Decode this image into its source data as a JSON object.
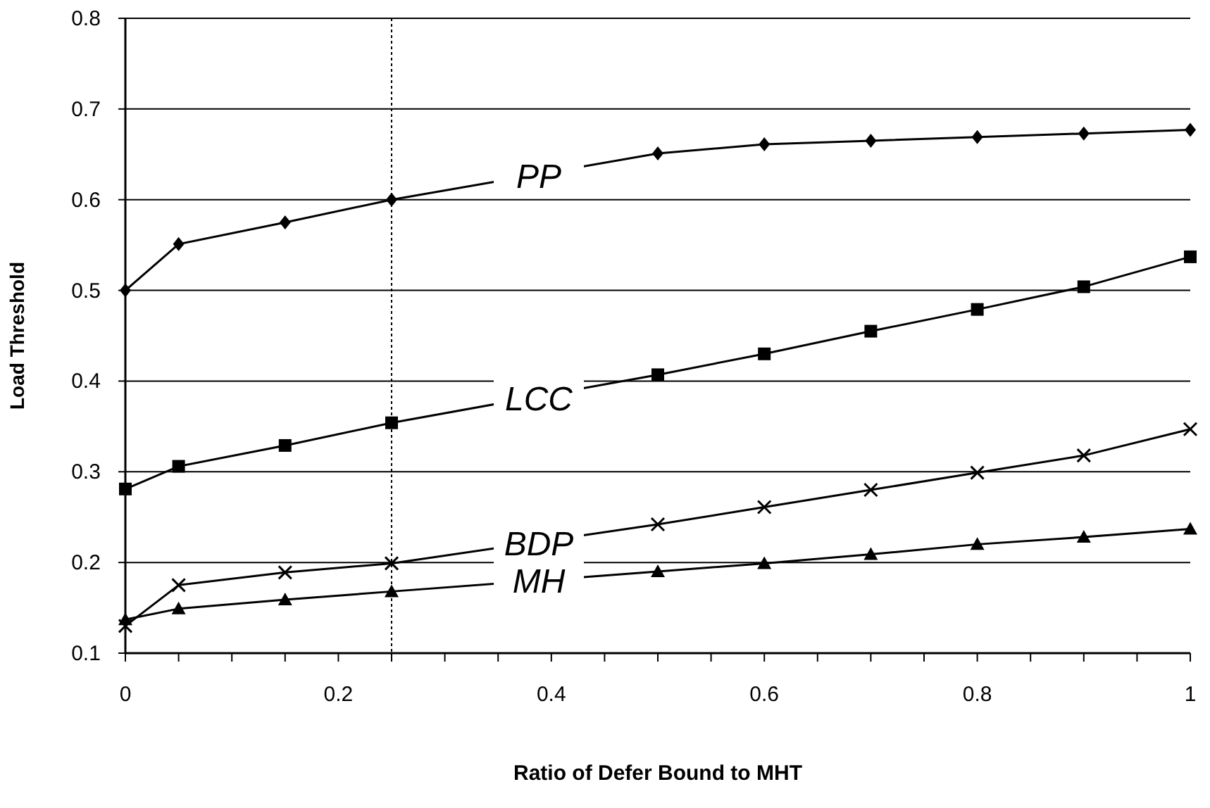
{
  "chart_data": {
    "type": "line",
    "xlabel": "Ratio of Defer Bound to MHT",
    "ylabel": "Load Threshold",
    "x": [
      0,
      0.05,
      0.15,
      0.25,
      0.5,
      0.6,
      0.7,
      0.8,
      0.9,
      1
    ],
    "series": [
      {
        "name": "PP",
        "color": "#000000",
        "marker": "diamond",
        "values": [
          0.5,
          0.551,
          0.575,
          0.6,
          0.651,
          0.661,
          0.665,
          0.669,
          0.673,
          0.677
        ]
      },
      {
        "name": "LCC",
        "color": "#000000",
        "marker": "square",
        "values": [
          0.281,
          0.306,
          0.329,
          0.354,
          0.407,
          0.43,
          0.455,
          0.479,
          0.504,
          0.537
        ]
      },
      {
        "name": "BDP",
        "color": "#000000",
        "marker": "cross",
        "values": [
          0.13,
          0.175,
          0.189,
          0.199,
          0.242,
          0.261,
          0.28,
          0.299,
          0.318,
          0.347
        ]
      },
      {
        "name": "MH",
        "color": "#000000",
        "marker": "triangle",
        "values": [
          0.137,
          0.149,
          0.159,
          0.168,
          0.19,
          0.199,
          0.209,
          0.22,
          0.228,
          0.237
        ]
      }
    ],
    "xlim": [
      0,
      1
    ],
    "xticks": [
      0,
      0.2,
      0.4,
      0.6,
      0.8,
      1
    ],
    "ylim": [
      0.1,
      0.8
    ],
    "yticks": [
      0.1,
      0.2,
      0.3,
      0.4,
      0.5,
      0.6,
      0.7,
      0.8
    ],
    "grid": "y",
    "line_style": "solid",
    "ref_lines": [
      {
        "axis": "x",
        "value": 0.25,
        "color": "#000000",
        "line_style": "dotted"
      }
    ]
  }
}
